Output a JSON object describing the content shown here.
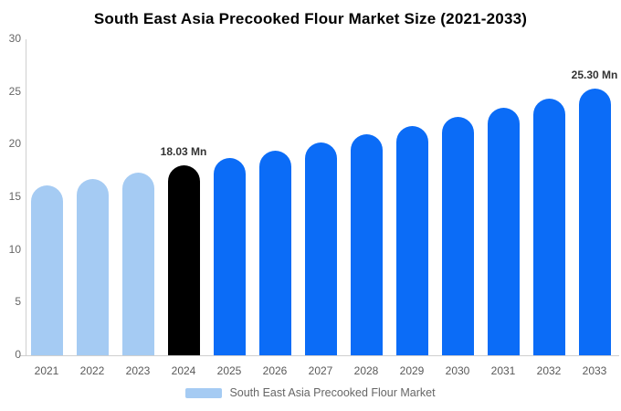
{
  "title": "South East Asia Precooked Flour Market Size (2021-2033)",
  "colors": {
    "light_blue": "#a5cbf3",
    "blue": "#0b6cf7",
    "black": "#000000",
    "axis_line": "#cfcfcf",
    "tick_text": "#666666",
    "year_text": "#595959",
    "value_label_text": "#333333",
    "legend_text": "#666666"
  },
  "legend": {
    "label": "South East Asia Precooked Flour Market",
    "swatch_color_key": "light_blue",
    "position": "bottom"
  },
  "chart_data": {
    "type": "bar",
    "title": "South East Asia Precooked Flour Market Size (2021-2033)",
    "categories": [
      "2021",
      "2022",
      "2023",
      "2024",
      "2025",
      "2026",
      "2027",
      "2028",
      "2029",
      "2030",
      "2031",
      "2032",
      "2033"
    ],
    "values": [
      16.1,
      16.72,
      17.36,
      18.03,
      18.72,
      19.44,
      20.19,
      20.96,
      21.77,
      22.6,
      23.47,
      24.37,
      25.3
    ],
    "point_labels": [
      "",
      "",
      "",
      "18.03 Mn",
      "",
      "",
      "",
      "",
      "",
      "",
      "",
      "",
      "25.30 Mn"
    ],
    "bar_color_keys": [
      "light_blue",
      "light_blue",
      "light_blue",
      "black",
      "blue",
      "blue",
      "blue",
      "blue",
      "blue",
      "blue",
      "blue",
      "blue",
      "blue"
    ],
    "xlabel": "",
    "ylabel": "",
    "ylim": [
      0,
      30
    ],
    "yticks": [
      0,
      5,
      10,
      15,
      20,
      25,
      30
    ],
    "grid": false,
    "legend_position": "bottom"
  }
}
